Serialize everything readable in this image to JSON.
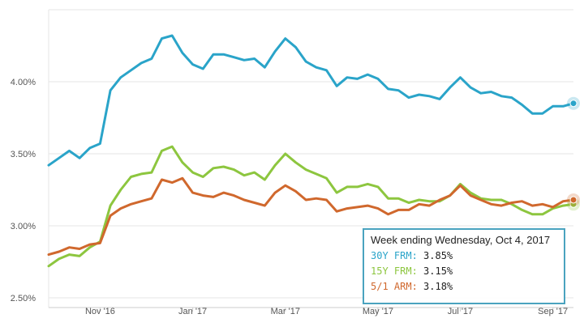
{
  "chart_data": {
    "type": "line",
    "title": "",
    "xlabel": "",
    "ylabel": "",
    "ylim": [
      2.5,
      4.5
    ],
    "y_ticks": [
      {
        "value": 2.5,
        "label": "2.50%"
      },
      {
        "value": 3.0,
        "label": "3.00%"
      },
      {
        "value": 3.5,
        "label": "3.50%"
      },
      {
        "value": 4.0,
        "label": "4.00%"
      }
    ],
    "x_ticks": [
      "Nov '16",
      "Jan '17",
      "Mar '17",
      "May '17",
      "Jul '17",
      "Sep '17"
    ],
    "x_tick_index": [
      5,
      14,
      23,
      32,
      40,
      49
    ],
    "grid": "horizontal",
    "series": [
      {
        "key": "30y",
        "color": "#2aa4c9",
        "values": [
          3.42,
          3.47,
          3.52,
          3.47,
          3.54,
          3.57,
          3.94,
          4.03,
          4.08,
          4.13,
          4.16,
          4.3,
          4.32,
          4.2,
          4.12,
          4.09,
          4.19,
          4.19,
          4.17,
          4.15,
          4.16,
          4.1,
          4.21,
          4.3,
          4.24,
          4.14,
          4.1,
          4.08,
          3.97,
          4.03,
          4.02,
          4.05,
          4.02,
          3.95,
          3.94,
          3.89,
          3.91,
          3.9,
          3.88,
          3.96,
          4.03,
          3.96,
          3.92,
          3.93,
          3.9,
          3.89,
          3.84,
          3.78,
          3.78,
          3.83,
          3.83,
          3.85
        ]
      },
      {
        "key": "15y",
        "color": "#8dc63f",
        "values": [
          2.72,
          2.77,
          2.8,
          2.79,
          2.85,
          2.89,
          3.14,
          3.25,
          3.34,
          3.36,
          3.37,
          3.52,
          3.55,
          3.44,
          3.37,
          3.34,
          3.4,
          3.41,
          3.39,
          3.35,
          3.37,
          3.32,
          3.42,
          3.5,
          3.44,
          3.39,
          3.36,
          3.33,
          3.23,
          3.27,
          3.27,
          3.29,
          3.27,
          3.19,
          3.19,
          3.16,
          3.18,
          3.17,
          3.17,
          3.21,
          3.29,
          3.23,
          3.19,
          3.18,
          3.18,
          3.15,
          3.11,
          3.08,
          3.08,
          3.12,
          3.14,
          3.15
        ]
      },
      {
        "key": "arm",
        "color": "#d0682d",
        "values": [
          2.8,
          2.82,
          2.85,
          2.84,
          2.87,
          2.88,
          3.07,
          3.12,
          3.15,
          3.17,
          3.19,
          3.32,
          3.3,
          3.33,
          3.23,
          3.21,
          3.2,
          3.23,
          3.21,
          3.18,
          3.16,
          3.14,
          3.23,
          3.28,
          3.24,
          3.18,
          3.19,
          3.18,
          3.1,
          3.12,
          3.13,
          3.14,
          3.12,
          3.08,
          3.11,
          3.11,
          3.15,
          3.14,
          3.18,
          3.21,
          3.28,
          3.21,
          3.18,
          3.15,
          3.14,
          3.16,
          3.17,
          3.14,
          3.15,
          3.13,
          3.17,
          3.18
        ]
      }
    ]
  },
  "tooltip": {
    "title": "Week ending Wednesday, Oct 4, 2017",
    "rows": [
      {
        "label": "30Y FRM:",
        "value": "3.85%",
        "color": "#2aa4c9"
      },
      {
        "label": "15Y FRM:",
        "value": "3.15%",
        "color": "#8dc63f"
      },
      {
        "label": "5/1 ARM:",
        "value": "3.18%",
        "color": "#d0682d"
      }
    ]
  }
}
